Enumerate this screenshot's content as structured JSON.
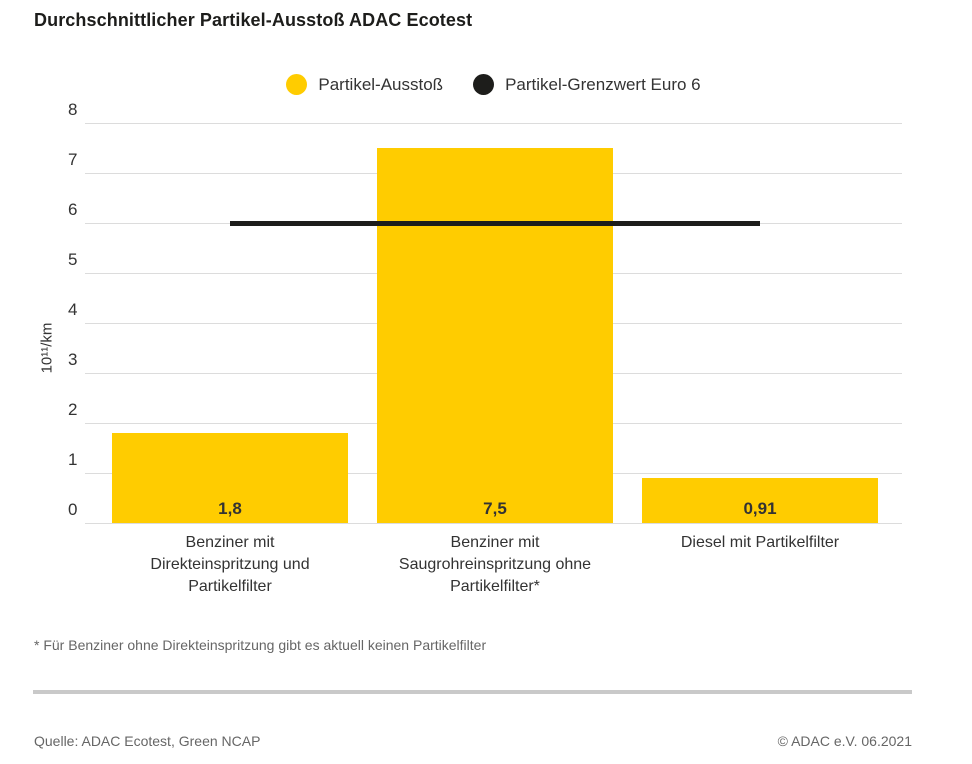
{
  "title": "Durchschnittlicher Partikel-Ausstoß ADAC Ecotest",
  "chart_data": {
    "type": "bar",
    "title": "Durchschnittlicher Partikel-Ausstoß ADAC Ecotest",
    "categories": [
      "Benziner mit\nDirekteinspritzung und\nPartikelfilter",
      "Benziner mit\nSaugrohreinspritzung ohne\nPartikelfilter*",
      "Diesel mit Partikelfilter"
    ],
    "series": [
      {
        "name": "Partikel-Ausstoß",
        "type": "bar",
        "color": "#FFCC00",
        "values": [
          1.8,
          7.5,
          0.91
        ],
        "value_labels": [
          "1,8",
          "7,5",
          "0,91"
        ]
      },
      {
        "name": "Partikel-Grenzwert Euro 6",
        "type": "limit-line",
        "color": "#1D1D1B",
        "value": 6
      }
    ],
    "xlabel": "",
    "ylabel": "10¹¹/km",
    "ylim": [
      0,
      8
    ],
    "ytick_step": 1,
    "grid": true,
    "gridline_color": "#DCDCDC",
    "legend_position": "top",
    "value_label_color": "#333333"
  },
  "footnote": "* Für Benziner ohne Direkteinspritzung gibt es aktuell keinen Partikelfilter",
  "footer": {
    "source": "Quelle: ADAC Ecotest, Green NCAP",
    "copyright": "© ADAC e.V. 06.2021"
  }
}
